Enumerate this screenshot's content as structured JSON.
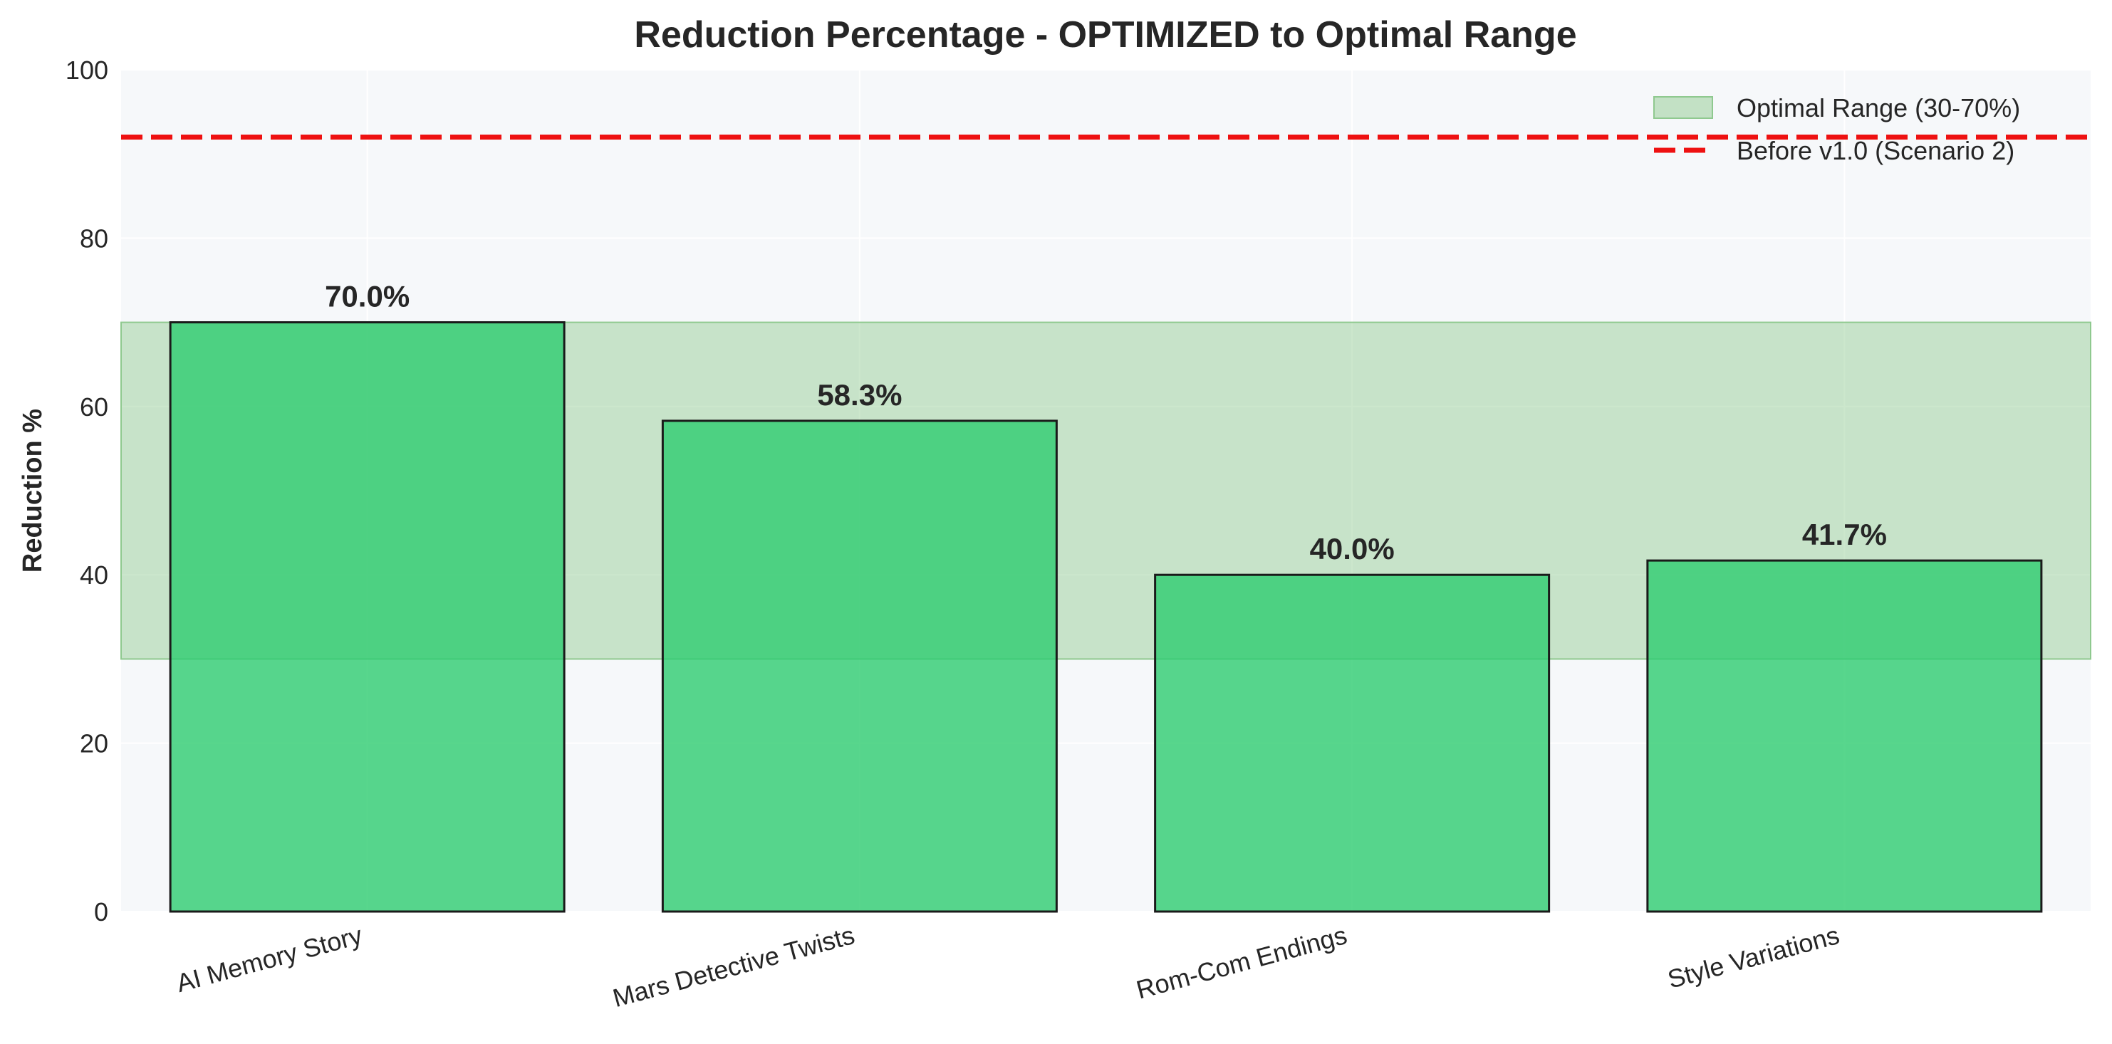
{
  "chart_data": {
    "type": "bar",
    "title": "Reduction Percentage - OPTIMIZED to Optimal Range",
    "xlabel": "",
    "ylabel": "Reduction %",
    "categories": [
      "AI Memory Story",
      "Mars Detective Twists",
      "Rom-Com Endings",
      "Style Variations"
    ],
    "values": [
      70.0,
      58.3,
      40.0,
      41.7
    ],
    "data_labels": [
      "70.0%",
      "58.3%",
      "40.0%",
      "41.7%"
    ],
    "ylim": [
      0,
      100
    ],
    "yticks": [
      0,
      20,
      40,
      60,
      80,
      100
    ],
    "grid": true,
    "bar_color": "#2ecc71",
    "bar_edge_color": "#1a1a1a",
    "optimal_range": {
      "label": "Optimal Range (30-70%)",
      "low": 30,
      "high": 70,
      "color": "#8fc98f"
    },
    "reference_line": {
      "label": "Before v1.0 (Scenario 2)",
      "value": 92,
      "color": "#ee1111"
    },
    "legend_position": "top-right"
  }
}
